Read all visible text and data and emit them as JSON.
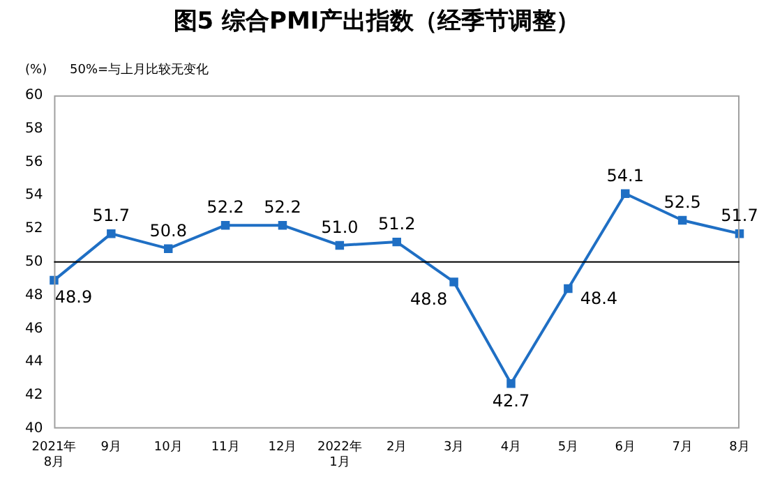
{
  "chart_data": {
    "type": "line",
    "title": "图5 综合PMI产出指数（经季节调整）",
    "annotations": [
      "(%)",
      "50%=与上月比较无变化"
    ],
    "categories": [
      "2021年\n8月",
      "9月",
      "10月",
      "11月",
      "12月",
      "2022年\n1月",
      "2月",
      "3月",
      "4月",
      "5月",
      "6月",
      "7月",
      "8月"
    ],
    "series": [
      {
        "color": "#1f6fc4",
        "values": [
          48.9,
          51.7,
          50.8,
          52.2,
          52.2,
          51.0,
          51.2,
          48.8,
          42.7,
          48.4,
          54.1,
          52.5,
          51.7
        ],
        "value_labels": [
          "48.9",
          "51.7",
          "50.8",
          "52.2",
          "52.2",
          "51.0",
          "51.2",
          "48.8",
          "42.7",
          "48.4",
          "54.1",
          "52.5",
          "51.7"
        ]
      }
    ],
    "ylim": [
      40,
      60
    ],
    "yticks": [
      40,
      42,
      44,
      46,
      48,
      50,
      52,
      54,
      56,
      58,
      60
    ],
    "ref_lines": [
      {
        "axis": "y",
        "value": 50,
        "color": "#000000"
      }
    ],
    "grid": false,
    "legend": false,
    "marker": "square",
    "line_style": "solid"
  }
}
